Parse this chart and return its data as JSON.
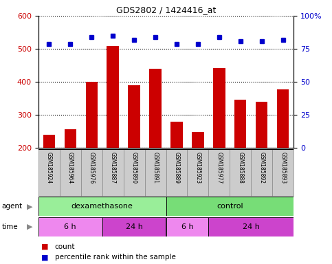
{
  "title": "GDS2802 / 1424416_at",
  "samples": [
    "GSM185924",
    "GSM185964",
    "GSM185976",
    "GSM185887",
    "GSM185890",
    "GSM185891",
    "GSM185889",
    "GSM185923",
    "GSM185977",
    "GSM185888",
    "GSM185892",
    "GSM185893"
  ],
  "bar_values": [
    240,
    258,
    400,
    510,
    390,
    440,
    280,
    248,
    442,
    347,
    340,
    378
  ],
  "percentile_values": [
    79,
    79,
    84,
    85,
    82,
    84,
    79,
    79,
    84,
    81,
    81,
    82
  ],
  "bar_color": "#cc0000",
  "dot_color": "#0000cc",
  "ylim_left": [
    200,
    600
  ],
  "ylim_right": [
    0,
    100
  ],
  "yticks_left": [
    200,
    300,
    400,
    500,
    600
  ],
  "yticks_right": [
    0,
    25,
    50,
    75,
    100
  ],
  "agent_groups": [
    {
      "label": "dexamethasone",
      "start": 0,
      "end": 6,
      "color": "#99ee99"
    },
    {
      "label": "control",
      "start": 6,
      "end": 12,
      "color": "#77dd77"
    }
  ],
  "time_groups": [
    {
      "label": "6 h",
      "start": 0,
      "end": 3,
      "color": "#ee88ee"
    },
    {
      "label": "24 h",
      "start": 3,
      "end": 6,
      "color": "#cc44cc"
    },
    {
      "label": "6 h",
      "start": 6,
      "end": 8,
      "color": "#ee88ee"
    },
    {
      "label": "24 h",
      "start": 8,
      "end": 12,
      "color": "#cc44cc"
    }
  ],
  "legend_count_color": "#cc0000",
  "legend_dot_color": "#0000cc",
  "tick_label_color_left": "#cc0000",
  "tick_label_color_right": "#0000cc",
  "sample_box_color": "#cccccc",
  "sample_box_edge": "#888888"
}
